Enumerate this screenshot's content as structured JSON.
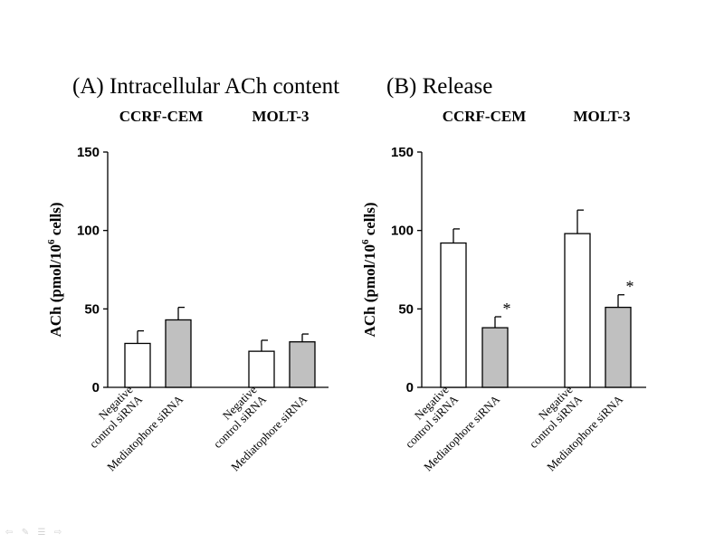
{
  "chart_data": [
    {
      "type": "bar",
      "title": "(A) Intracellular ACh content",
      "ylabel": "ACh (pmol/10",
      "ylabel_sup": "6",
      "ylabel_end": " cells)",
      "ylim": [
        0,
        150
      ],
      "yticks": [
        "0",
        "50",
        "100",
        "150"
      ],
      "grid": false,
      "legend": "none",
      "groups": [
        "CCRF-CEM",
        "MOLT-3"
      ],
      "categories": [
        "Negative control siRNA",
        "Mediatophore siRNA"
      ],
      "category_label_lines": [
        [
          "Negative",
          "control siRNA"
        ],
        [
          "Mediatophore siRNA"
        ]
      ],
      "bar_colors": [
        "#ffffff",
        "#c0c0c0"
      ],
      "values": [
        [
          28,
          43
        ],
        [
          23,
          29
        ]
      ],
      "errors": [
        [
          8,
          8
        ],
        [
          7,
          5
        ]
      ],
      "significance": [
        [
          "",
          ""
        ],
        [
          "",
          ""
        ]
      ]
    },
    {
      "type": "bar",
      "title": "(B) Release",
      "ylabel": "ACh (pmol/10",
      "ylabel_sup": "6",
      "ylabel_end": " cells)",
      "ylim": [
        0,
        150
      ],
      "yticks": [
        "0",
        "50",
        "100",
        "150"
      ],
      "grid": false,
      "legend": "none",
      "groups": [
        "CCRF-CEM",
        "MOLT-3"
      ],
      "categories": [
        "Negative control siRNA",
        "Mediatophore siRNA"
      ],
      "category_label_lines": [
        [
          "Negative",
          "control siRNA"
        ],
        [
          "Mediatophore siRNA"
        ]
      ],
      "bar_colors": [
        "#ffffff",
        "#c0c0c0"
      ],
      "values": [
        [
          92,
          38
        ],
        [
          98,
          51
        ]
      ],
      "errors": [
        [
          9,
          7
        ],
        [
          15,
          8
        ]
      ],
      "significance": [
        [
          "",
          "*"
        ],
        [
          "",
          "*"
        ]
      ]
    }
  ],
  "slide_nav": {
    "icons": [
      "prev-arrow-icon",
      "pen-icon",
      "menu-icon",
      "next-arrow-icon"
    ],
    "glyphs": [
      "⇦",
      "✎",
      "☰",
      "⇨"
    ]
  }
}
